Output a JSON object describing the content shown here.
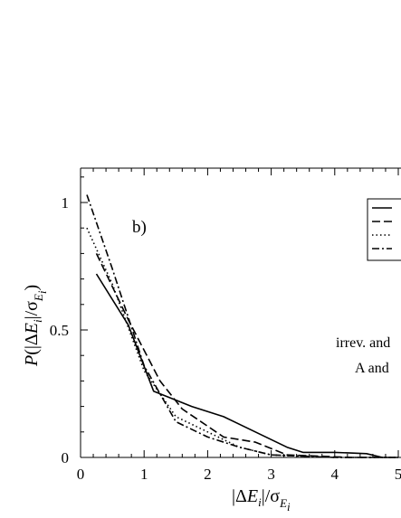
{
  "chart_data": {
    "type": "line",
    "panel_label": "b)",
    "xlabel": "|ΔE_i|/σ_{E_i}",
    "ylabel": "P(|ΔE_i|/σ_{E_i})",
    "xlim": [
      0,
      5
    ],
    "ylim": [
      0,
      1.1
    ],
    "x_ticks": [
      "0",
      "1",
      "2",
      "3",
      "4",
      "5"
    ],
    "y_ticks": [
      "0",
      "0.5",
      "1"
    ],
    "annotations": [
      "irrev. and",
      "A and"
    ],
    "grid": false,
    "legend_position": "top-right",
    "series": [
      {
        "line_style": "solid",
        "x": [
          0.25,
          0.75,
          1.15,
          1.75,
          2.25,
          2.75,
          3.25,
          3.5,
          4.0,
          4.5,
          4.75,
          5.0
        ],
        "y": [
          0.72,
          0.52,
          0.26,
          0.2,
          0.16,
          0.1,
          0.04,
          0.02,
          0.02,
          0.015,
          0.0,
          0.0
        ]
      },
      {
        "line_style": "dashed",
        "x": [
          0.25,
          0.75,
          1.25,
          1.6,
          2.25,
          2.75,
          3.25,
          3.75,
          4.25,
          4.75
        ],
        "y": [
          0.8,
          0.54,
          0.3,
          0.19,
          0.08,
          0.06,
          0.01,
          0.005,
          0.0,
          0.0
        ]
      },
      {
        "line_style": "dotted",
        "x": [
          0.1,
          0.5,
          1.0,
          1.5,
          2.0,
          2.5,
          3.0,
          3.5,
          4.0,
          4.5,
          5.0
        ],
        "y": [
          0.9,
          0.68,
          0.34,
          0.16,
          0.1,
          0.04,
          0.01,
          0.005,
          0.0,
          0.0,
          0.0
        ]
      },
      {
        "line_style": "dash-dot",
        "x": [
          0.1,
          0.5,
          1.0,
          1.5,
          2.0,
          2.5,
          3.0,
          3.5,
          4.0,
          4.5,
          5.0
        ],
        "y": [
          1.03,
          0.74,
          0.36,
          0.14,
          0.08,
          0.04,
          0.01,
          0.005,
          0.0,
          0.0,
          0.0
        ]
      }
    ]
  }
}
